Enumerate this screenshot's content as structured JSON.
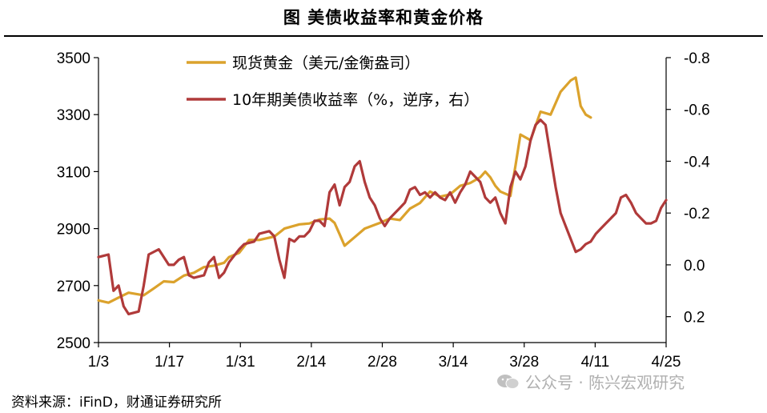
{
  "title": "图  美债收益率和黄金价格",
  "source": "资料来源：iFinD，财通证券研究所",
  "watermark": "公众号 · 陈兴宏观研究",
  "colors": {
    "gold": "#DBA22C",
    "yield": "#B03A3A",
    "axis": "#000000"
  },
  "chart_data": {
    "type": "line",
    "x_tick_labels": [
      "1/3",
      "1/17",
      "1/31",
      "2/14",
      "2/28",
      "3/14",
      "3/28",
      "4/11",
      "4/25"
    ],
    "y_left": {
      "ticks": [
        2500,
        2700,
        2900,
        3100,
        3300,
        3500
      ],
      "range": [
        2500,
        3500
      ]
    },
    "y_right": {
      "ticks": [
        0.2,
        0.0,
        -0.2,
        -0.4,
        -0.6,
        -0.8
      ],
      "tick_labels": [
        "0.2",
        "0.0",
        "-0.2",
        "-0.4",
        "-0.6",
        "-0.8"
      ],
      "range": [
        0.3,
        -0.8
      ],
      "inverted": true
    },
    "legend_placement": "top-center",
    "series": [
      {
        "name": "现货黄金（美元/金衡盎司）",
        "axis": "left",
        "values": [
          [
            0,
            2648
          ],
          [
            2,
            2640
          ],
          [
            4,
            2658
          ],
          [
            6,
            2675
          ],
          [
            9,
            2666
          ],
          [
            11,
            2690
          ],
          [
            13,
            2715
          ],
          [
            15,
            2712
          ],
          [
            17,
            2735
          ],
          [
            19,
            2745
          ],
          [
            21,
            2765
          ],
          [
            23,
            2770
          ],
          [
            25,
            2780
          ],
          [
            26,
            2800
          ],
          [
            28,
            2815
          ],
          [
            30,
            2860
          ],
          [
            32,
            2860
          ],
          [
            35,
            2872
          ],
          [
            37,
            2900
          ],
          [
            40,
            2915
          ],
          [
            42,
            2918
          ],
          [
            44,
            2932
          ],
          [
            46,
            2935
          ],
          [
            47,
            2920
          ],
          [
            48,
            2880
          ],
          [
            49,
            2840
          ],
          [
            51,
            2870
          ],
          [
            53,
            2900
          ],
          [
            56,
            2920
          ],
          [
            58,
            2935
          ],
          [
            60,
            2930
          ],
          [
            62,
            2970
          ],
          [
            64,
            2990
          ],
          [
            66,
            3030
          ],
          [
            68,
            3012
          ],
          [
            70,
            3020
          ],
          [
            72,
            3050
          ],
          [
            74,
            3060
          ],
          [
            76,
            3080
          ],
          [
            77,
            3100
          ],
          [
            78,
            3080
          ],
          [
            79,
            3050
          ],
          [
            80,
            3030
          ],
          [
            82,
            3015
          ],
          [
            83,
            3120
          ],
          [
            84,
            3230
          ],
          [
            86,
            3210
          ],
          [
            88,
            3310
          ],
          [
            90,
            3300
          ],
          [
            92,
            3380
          ],
          [
            94,
            3420
          ],
          [
            95,
            3430
          ],
          [
            96,
            3330
          ],
          [
            97,
            3300
          ],
          [
            98,
            3290
          ]
        ]
      },
      {
        "name": "10年期美债收益率（%，逆序，右）",
        "axis": "right",
        "values": [
          [
            0,
            -0.03
          ],
          [
            2,
            -0.04
          ],
          [
            3,
            0.1
          ],
          [
            4,
            0.08
          ],
          [
            5,
            0.16
          ],
          [
            6,
            0.19
          ],
          [
            8,
            0.18
          ],
          [
            9,
            0.08
          ],
          [
            10,
            -0.04
          ],
          [
            12,
            -0.06
          ],
          [
            14,
            0.0
          ],
          [
            15,
            0.0
          ],
          [
            16,
            -0.02
          ],
          [
            17,
            -0.03
          ],
          [
            18,
            0.04
          ],
          [
            19,
            0.05
          ],
          [
            21,
            0.04
          ],
          [
            22,
            -0.01
          ],
          [
            23,
            -0.03
          ],
          [
            24,
            0.05
          ],
          [
            25,
            0.03
          ],
          [
            26,
            -0.01
          ],
          [
            28,
            -0.06
          ],
          [
            29,
            -0.08
          ],
          [
            31,
            -0.09
          ],
          [
            32,
            -0.12
          ],
          [
            34,
            -0.13
          ],
          [
            35,
            -0.11
          ],
          [
            36,
            -0.02
          ],
          [
            37,
            0.05
          ],
          [
            38,
            -0.1
          ],
          [
            39,
            -0.09
          ],
          [
            40,
            -0.11
          ],
          [
            41,
            -0.11
          ],
          [
            42,
            -0.13
          ],
          [
            43,
            -0.17
          ],
          [
            44,
            -0.17
          ],
          [
            45,
            -0.15
          ],
          [
            46,
            -0.28
          ],
          [
            47,
            -0.31
          ],
          [
            48,
            -0.23
          ],
          [
            49,
            -0.3
          ],
          [
            50,
            -0.32
          ],
          [
            51,
            -0.38
          ],
          [
            52,
            -0.4
          ],
          [
            53,
            -0.32
          ],
          [
            54,
            -0.26
          ],
          [
            55,
            -0.23
          ],
          [
            56,
            -0.18
          ],
          [
            57,
            -0.15
          ],
          [
            58,
            -0.18
          ],
          [
            59,
            -0.2
          ],
          [
            60,
            -0.22
          ],
          [
            61,
            -0.24
          ],
          [
            62,
            -0.29
          ],
          [
            63,
            -0.3
          ],
          [
            64,
            -0.27
          ],
          [
            65,
            -0.28
          ],
          [
            66,
            -0.26
          ],
          [
            67,
            -0.28
          ],
          [
            68,
            -0.26
          ],
          [
            69,
            -0.25
          ],
          [
            70,
            -0.28
          ],
          [
            71,
            -0.24
          ],
          [
            72,
            -0.28
          ],
          [
            73,
            -0.31
          ],
          [
            74,
            -0.36
          ],
          [
            75,
            -0.34
          ],
          [
            76,
            -0.32
          ],
          [
            77,
            -0.26
          ],
          [
            78,
            -0.24
          ],
          [
            79,
            -0.26
          ],
          [
            80,
            -0.2
          ],
          [
            81,
            -0.16
          ],
          [
            82,
            -0.3
          ],
          [
            83,
            -0.36
          ],
          [
            84,
            -0.33
          ],
          [
            85,
            -0.38
          ],
          [
            86,
            -0.48
          ],
          [
            87,
            -0.54
          ],
          [
            88,
            -0.56
          ],
          [
            89,
            -0.54
          ],
          [
            90,
            -0.42
          ],
          [
            91,
            -0.3
          ],
          [
            92,
            -0.2
          ],
          [
            93,
            -0.15
          ],
          [
            94,
            -0.1
          ],
          [
            95,
            -0.05
          ],
          [
            96,
            -0.06
          ],
          [
            97,
            -0.08
          ],
          [
            98,
            -0.09
          ],
          [
            99,
            -0.12
          ],
          [
            100,
            -0.14
          ],
          [
            101,
            -0.16
          ],
          [
            102,
            -0.18
          ],
          [
            103,
            -0.2
          ],
          [
            104,
            -0.26
          ],
          [
            105,
            -0.27
          ],
          [
            106,
            -0.24
          ],
          [
            107,
            -0.2
          ],
          [
            108,
            -0.18
          ],
          [
            109,
            -0.16
          ],
          [
            110,
            -0.16
          ],
          [
            111,
            -0.17
          ],
          [
            112,
            -0.22
          ],
          [
            113,
            -0.25
          ]
        ]
      }
    ]
  }
}
